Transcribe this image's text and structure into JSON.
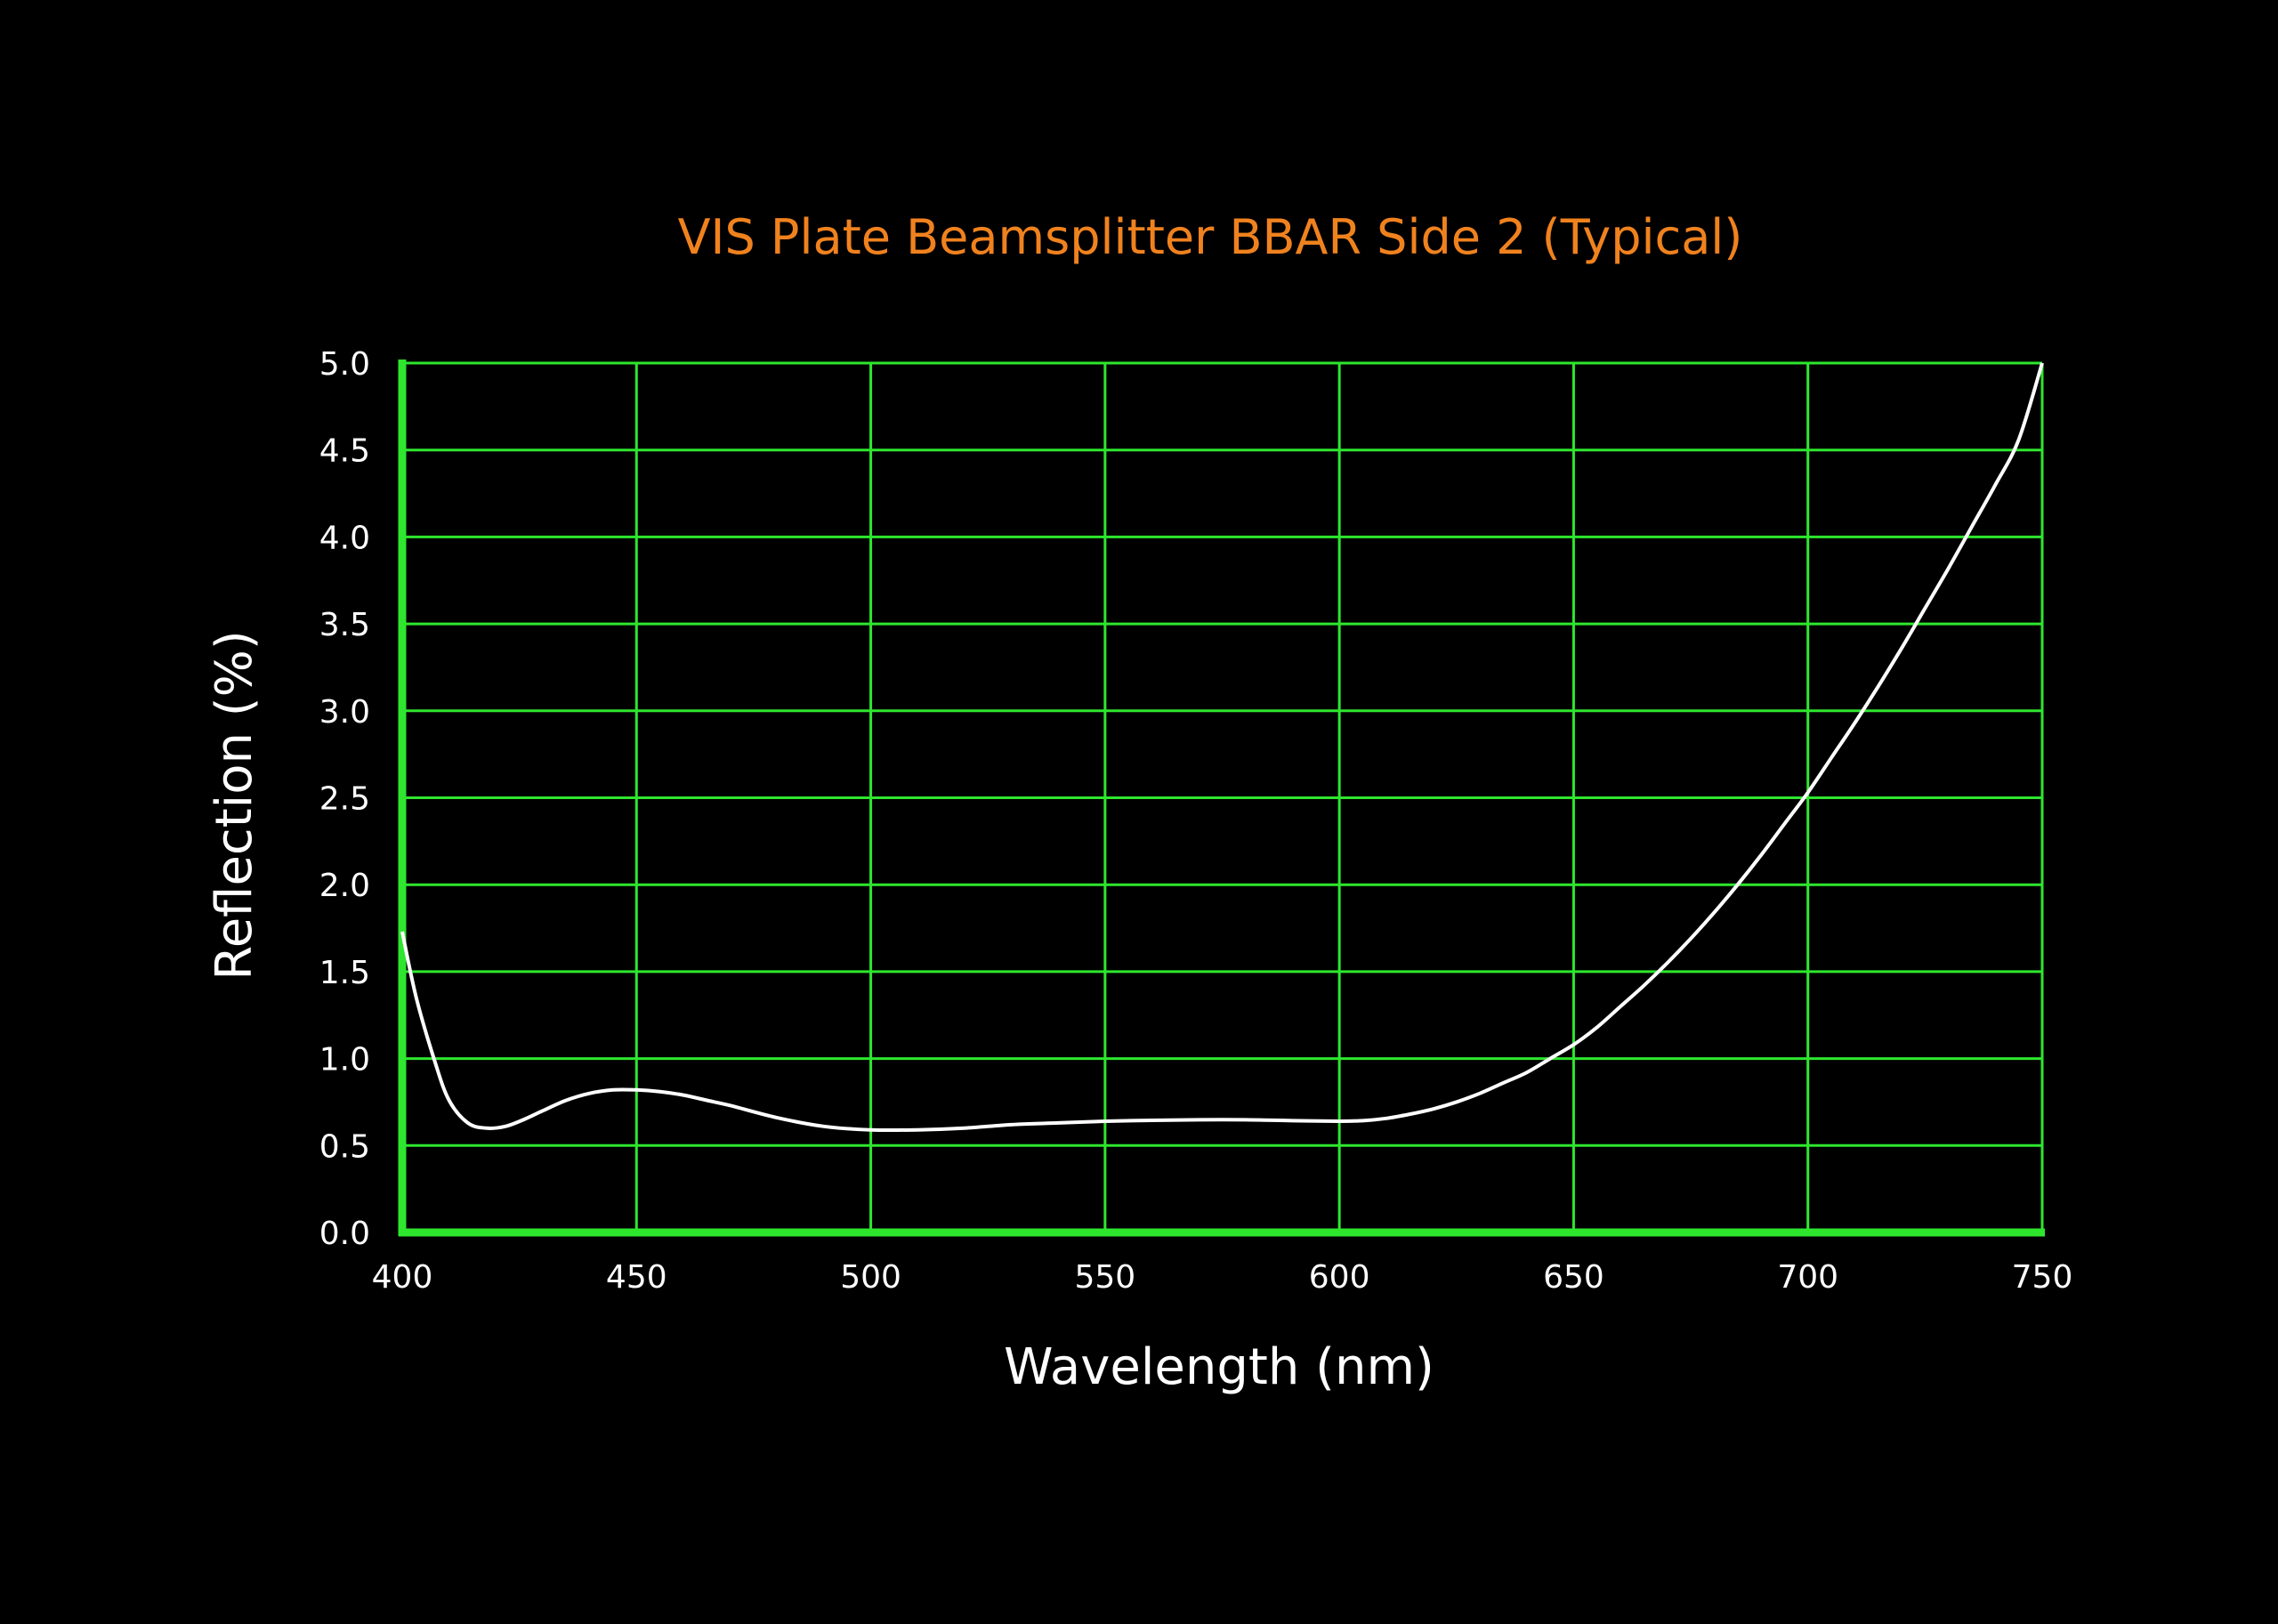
{
  "chart_data": {
    "type": "line",
    "title": "VIS Plate Beamsplitter BBAR Side 2  (Typical)",
    "xlabel": "Wavelength (nm)",
    "ylabel": "Reflection (%)",
    "xlim": [
      400,
      750
    ],
    "ylim": [
      0.0,
      5.0
    ],
    "x_ticks": [
      "400",
      "450",
      "500",
      "550",
      "600",
      "650",
      "700",
      "750"
    ],
    "y_ticks": [
      "0.0",
      "0.5",
      "1.0",
      "1.5",
      "2.0",
      "2.5",
      "3.0",
      "3.5",
      "4.0",
      "4.5",
      "5.0"
    ],
    "grid": true,
    "legend": "none",
    "series": [
      {
        "x": [
          400,
          403,
          407,
          410,
          414,
          418,
          422,
          426,
          430,
          435,
          440,
          445,
          450,
          455,
          460,
          465,
          470,
          480,
          490,
          500,
          510,
          520,
          530,
          540,
          550,
          560,
          570,
          580,
          590,
          600,
          605,
          610,
          615,
          620,
          625,
          630,
          635,
          640,
          645,
          650,
          655,
          660,
          665,
          670,
          675,
          680,
          685,
          690,
          695,
          700,
          705,
          710,
          715,
          720,
          725,
          730,
          735,
          740,
          745,
          750
        ],
        "y": [
          1.73,
          1.35,
          0.98,
          0.76,
          0.63,
          0.6,
          0.61,
          0.65,
          0.7,
          0.76,
          0.8,
          0.82,
          0.82,
          0.81,
          0.79,
          0.76,
          0.73,
          0.66,
          0.61,
          0.59,
          0.59,
          0.6,
          0.62,
          0.63,
          0.64,
          0.645,
          0.648,
          0.648,
          0.643,
          0.64,
          0.643,
          0.656,
          0.68,
          0.71,
          0.75,
          0.8,
          0.86,
          0.92,
          1.0,
          1.08,
          1.18,
          1.3,
          1.42,
          1.55,
          1.69,
          1.84,
          2.0,
          2.17,
          2.35,
          2.53,
          2.73,
          2.93,
          3.14,
          3.36,
          3.59,
          3.82,
          4.06,
          4.3,
          4.56,
          5.0
        ]
      }
    ],
    "colors": {
      "background": "#000000",
      "grid": "#2ee62e",
      "line": "#ffffff",
      "title": "#f0821e",
      "text": "#ffffff"
    }
  }
}
